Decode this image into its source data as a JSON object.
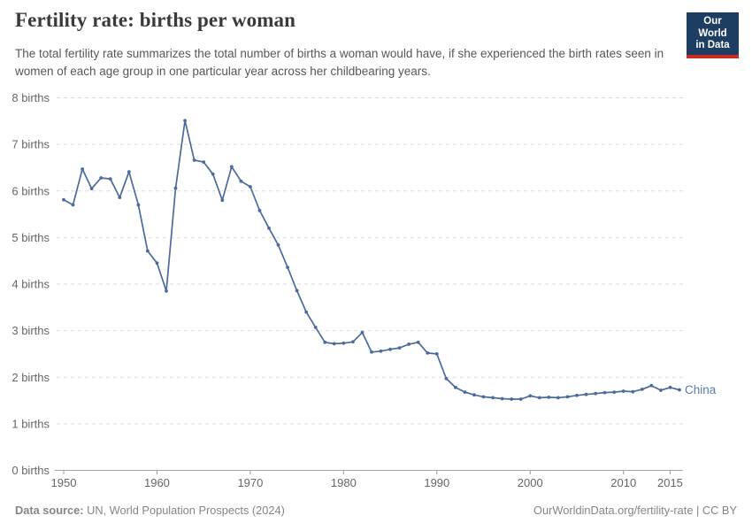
{
  "header": {
    "title": "Fertility rate: births per woman",
    "subtitle": "The total fertility rate summarizes the total number of births a woman would have, if she experienced the birth rates seen in women of each age group in one particular year across her childbearing years.",
    "logo": {
      "line1": "Our World",
      "line2": "in Data"
    }
  },
  "colors": {
    "line": "#4C6A9C",
    "series_label": "#5b7cab",
    "grid": "#dddddd",
    "axis": "#a6a6a6",
    "tick": "#999999",
    "tick_text": "#666666",
    "title_text": "#3a3a3a",
    "subtitle_text": "#575757",
    "footer_text": "#858585",
    "logo_bg": "#1d3d63",
    "logo_bar": "#cb2d22"
  },
  "chart_data": {
    "type": "line",
    "title": "Fertility rate: births per woman",
    "xlabel": "",
    "ylabel": "births per woman",
    "xlim": [
      1950,
      2016
    ],
    "ylim": [
      0,
      8
    ],
    "grid": "horizontal dashed",
    "legend_position": "end-of-line label",
    "x_ticks": [
      {
        "year": 1950,
        "label": "1950"
      },
      {
        "year": 1960,
        "label": "1960"
      },
      {
        "year": 1970,
        "label": "1970"
      },
      {
        "year": 1980,
        "label": "1980"
      },
      {
        "year": 1990,
        "label": "1990"
      },
      {
        "year": 2000,
        "label": "2000"
      },
      {
        "year": 2010,
        "label": "2010"
      },
      {
        "year": 2015,
        "label": "2015"
      }
    ],
    "y_ticks": [
      {
        "value": 0,
        "label": "0 births"
      },
      {
        "value": 1,
        "label": "1 births"
      },
      {
        "value": 2,
        "label": "2 births"
      },
      {
        "value": 3,
        "label": "3 births"
      },
      {
        "value": 4,
        "label": "4 births"
      },
      {
        "value": 5,
        "label": "5 births"
      },
      {
        "value": 6,
        "label": "6 births"
      },
      {
        "value": 7,
        "label": "7 births"
      },
      {
        "value": 8,
        "label": "8 births"
      }
    ],
    "series": [
      {
        "name": "China",
        "color": "#4C6A9C",
        "label_color": "#5b7cab",
        "x": [
          1950,
          1951,
          1952,
          1953,
          1954,
          1955,
          1956,
          1957,
          1958,
          1959,
          1960,
          1961,
          1962,
          1963,
          1964,
          1965,
          1966,
          1967,
          1968,
          1969,
          1970,
          1971,
          1972,
          1973,
          1974,
          1975,
          1976,
          1977,
          1978,
          1979,
          1980,
          1981,
          1982,
          1983,
          1984,
          1985,
          1986,
          1987,
          1988,
          1989,
          1990,
          1991,
          1992,
          1993,
          1994,
          1995,
          1996,
          1997,
          1998,
          1999,
          2000,
          2001,
          2002,
          2003,
          2004,
          2005,
          2006,
          2007,
          2008,
          2009,
          2010,
          2011,
          2012,
          2013,
          2014,
          2015,
          2016
        ],
        "values": [
          5.81,
          5.7,
          6.47,
          6.05,
          6.28,
          6.26,
          5.86,
          6.41,
          5.7,
          4.71,
          4.45,
          3.85,
          6.06,
          7.51,
          6.66,
          6.62,
          6.36,
          5.8,
          6.52,
          6.21,
          6.09,
          5.58,
          5.2,
          4.84,
          4.36,
          3.86,
          3.4,
          3.07,
          2.75,
          2.72,
          2.73,
          2.76,
          2.96,
          2.54,
          2.56,
          2.6,
          2.63,
          2.71,
          2.75,
          2.52,
          2.5,
          1.97,
          1.78,
          1.68,
          1.62,
          1.58,
          1.56,
          1.54,
          1.53,
          1.53,
          1.6,
          1.56,
          1.57,
          1.56,
          1.58,
          1.61,
          1.63,
          1.65,
          1.67,
          1.68,
          1.7,
          1.69,
          1.74,
          1.82,
          1.72,
          1.78,
          1.73
        ]
      }
    ]
  },
  "footer": {
    "datasource_label": "Data source:",
    "datasource_value": " UN, World Population Prospects (2024)",
    "credit": "OurWorldinData.org/fertility-rate | CC BY"
  }
}
